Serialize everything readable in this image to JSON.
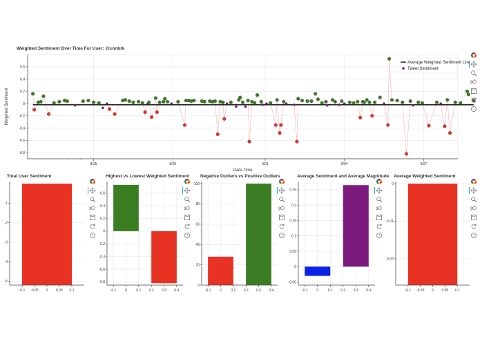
{
  "toolbar": {
    "icons": [
      "bokeh-logo-icon",
      "pan-icon",
      "box-zoom-icon",
      "wheel-zoom-icon",
      "save-icon",
      "reset-icon",
      "help-icon"
    ]
  },
  "colors": {
    "positive": "#3a7d22",
    "negative": "#e83224",
    "neutral": "#7b1b7e",
    "line": "#000000",
    "connector": "#f4a7a7",
    "bar_red": "#e83224",
    "bar_green": "#3a7d22",
    "bar_blue": "#0a23e8",
    "bar_purple": "#7b1b7e",
    "grid": "#e6e6e6"
  },
  "chart_data": [
    {
      "type": "scatter",
      "title": "Weighted Sentiment Over Time For User: @cnnbrk",
      "xlabel": "Date-Time",
      "ylabel": "Weighted Sentiment",
      "ylim": [
        -0.9,
        0.8
      ],
      "yticks": [
        0.6,
        0.4,
        0.2,
        0,
        -0.2,
        -0.4,
        -0.6,
        -0.8
      ],
      "x_tick_labels": [
        "8/25",
        "8/28",
        "9/01",
        "9/04",
        "9/07"
      ],
      "x_tick_positions": [
        2.5,
        5.5,
        9,
        12,
        15
      ],
      "xlim": [
        0,
        16.3
      ],
      "average_line_value": -0.02,
      "legend": {
        "placement": "top-right",
        "entries": [
          "Average Weighted Sentiment Line",
          "Tweet Sentiment"
        ]
      },
      "points": [
        [
          0.2,
          0.16
        ],
        [
          0.25,
          -0.1
        ],
        [
          0.4,
          0.02
        ],
        [
          0.5,
          0.03
        ],
        [
          0.6,
          0.12
        ],
        [
          0.8,
          -0.17
        ],
        [
          1.0,
          0.01
        ],
        [
          1.2,
          0.03
        ],
        [
          1.4,
          0.05
        ],
        [
          1.5,
          0.04
        ],
        [
          1.8,
          -0.03
        ],
        [
          2.1,
          0.04
        ],
        [
          2.3,
          0.05
        ],
        [
          2.5,
          0.02
        ],
        [
          2.7,
          0.01
        ],
        [
          2.85,
          -0.07
        ],
        [
          3.0,
          0.0
        ],
        [
          3.1,
          -0.09
        ],
        [
          3.3,
          -0.17
        ],
        [
          3.6,
          0.05
        ],
        [
          3.7,
          0.06
        ],
        [
          3.85,
          0.04
        ],
        [
          4.0,
          0.02
        ],
        [
          4.2,
          0.03
        ],
        [
          4.35,
          0.01
        ],
        [
          4.45,
          -0.14
        ],
        [
          4.55,
          0.0
        ],
        [
          4.6,
          0.02
        ],
        [
          4.7,
          -0.22
        ],
        [
          4.85,
          0.09
        ],
        [
          4.9,
          -0.14
        ],
        [
          5.0,
          0.02
        ],
        [
          5.15,
          0.03
        ],
        [
          5.2,
          0.08
        ],
        [
          5.3,
          0.03
        ],
        [
          5.45,
          0.0
        ],
        [
          5.7,
          0.03
        ],
        [
          5.95,
          -0.35
        ],
        [
          6.0,
          0.05
        ],
        [
          6.1,
          0.05
        ],
        [
          6.2,
          0.04
        ],
        [
          6.3,
          0.05
        ],
        [
          6.6,
          0.04
        ],
        [
          6.7,
          0.03
        ],
        [
          6.9,
          0.04
        ],
        [
          7.0,
          0.03
        ],
        [
          7.1,
          0.04
        ],
        [
          7.2,
          -0.5
        ],
        [
          7.3,
          0.03
        ],
        [
          7.4,
          0.02
        ],
        [
          7.45,
          -0.25
        ],
        [
          7.55,
          0.0
        ],
        [
          7.7,
          0.02
        ],
        [
          7.9,
          -0.05
        ],
        [
          8.0,
          0.06
        ],
        [
          8.05,
          0.1
        ],
        [
          8.15,
          0.02
        ],
        [
          8.25,
          -0.05
        ],
        [
          8.35,
          0.05
        ],
        [
          8.4,
          -0.62
        ],
        [
          8.5,
          0.03
        ],
        [
          8.6,
          0.01
        ],
        [
          8.7,
          0.14
        ],
        [
          8.85,
          0.03
        ],
        [
          8.9,
          -0.02
        ],
        [
          9.05,
          0.0
        ],
        [
          9.2,
          0.01
        ],
        [
          9.4,
          -0.35
        ],
        [
          9.45,
          0.06
        ],
        [
          9.55,
          -0.48
        ],
        [
          9.6,
          -0.35
        ],
        [
          9.7,
          0.03
        ],
        [
          9.8,
          0.0
        ],
        [
          10.1,
          -0.02
        ],
        [
          10.2,
          -0.62
        ],
        [
          10.25,
          0.08
        ],
        [
          10.4,
          0.05
        ],
        [
          10.6,
          0.04
        ],
        [
          10.75,
          0.04
        ],
        [
          10.9,
          0.16
        ],
        [
          11.0,
          0.07
        ],
        [
          11.15,
          0.01
        ],
        [
          11.3,
          0.03
        ],
        [
          11.35,
          -0.03
        ],
        [
          11.55,
          0.06
        ],
        [
          11.65,
          0.03
        ],
        [
          11.8,
          -0.02
        ],
        [
          11.9,
          0.04
        ],
        [
          12.0,
          0.0
        ],
        [
          12.2,
          0.02
        ],
        [
          12.35,
          0.01
        ],
        [
          12.5,
          0.03
        ],
        [
          12.6,
          -0.23
        ],
        [
          12.7,
          0.03
        ],
        [
          12.75,
          0.02
        ],
        [
          12.85,
          0.06
        ],
        [
          12.95,
          0.02
        ],
        [
          13.05,
          -0.2
        ],
        [
          13.15,
          0.02
        ],
        [
          13.35,
          0.1
        ],
        [
          13.5,
          0.0
        ],
        [
          13.65,
          -0.35
        ],
        [
          13.7,
          0.73
        ],
        [
          13.8,
          0.06
        ],
        [
          14.0,
          0.05
        ],
        [
          14.2,
          0.02
        ],
        [
          14.35,
          -0.82
        ],
        [
          14.5,
          0.04
        ],
        [
          14.6,
          -0.03
        ],
        [
          14.8,
          0.02
        ],
        [
          14.95,
          0.01
        ],
        [
          15.2,
          -0.36
        ],
        [
          15.5,
          0.02
        ],
        [
          15.65,
          0.0
        ],
        [
          15.8,
          -0.37
        ],
        [
          15.9,
          0.06
        ],
        [
          16.0,
          -0.48
        ],
        [
          16.2,
          0.02
        ],
        [
          16.4,
          0.01
        ],
        [
          16.65,
          0.2
        ],
        [
          16.7,
          0.15
        ],
        [
          16.9,
          0.05
        ]
      ]
    },
    {
      "type": "bar",
      "title": "Total User Sentiment",
      "x_tick_labels": [
        "-0.1",
        "-0.05",
        "0",
        "0.05",
        "0.1"
      ],
      "xlim": [
        -0.15,
        0.15
      ],
      "ylim": [
        -5.2,
        0
      ],
      "yticks": [
        -1,
        -2,
        -3,
        -4,
        -5
      ],
      "bars": [
        {
          "x0": -0.1,
          "x1": 0.1,
          "value": -5.2,
          "color": "#e83224"
        }
      ]
    },
    {
      "type": "bar",
      "title": "Highest vs Lowest Weighted Sentiment",
      "x_tick_labels": [
        "-0.1",
        "0",
        "0.1",
        "0.2",
        "0.3",
        "0.4"
      ],
      "xlim": [
        -0.15,
        0.45
      ],
      "ylim": [
        -0.85,
        0.75
      ],
      "yticks": [
        0.6,
        0.4,
        0.2,
        0,
        -0.2,
        -0.4,
        -0.6,
        -0.8
      ],
      "bars": [
        {
          "x0": -0.1,
          "x1": 0.1,
          "value": 0.73,
          "color": "#3a7d22"
        },
        {
          "x0": 0.2,
          "x1": 0.4,
          "value": -0.82,
          "color": "#e83224"
        }
      ]
    },
    {
      "type": "bar",
      "title": "Negative Outliers vs Positive Outliers",
      "x_tick_labels": [
        "-0.1",
        "0",
        "0.1",
        "0.2",
        "0.3",
        "0.4"
      ],
      "xlim": [
        -0.15,
        0.45
      ],
      "ylim": [
        0,
        100
      ],
      "yticks": [
        100,
        80,
        60,
        40,
        20,
        0
      ],
      "bars": [
        {
          "x0": -0.1,
          "x1": 0.1,
          "value": 28,
          "color": "#e83224"
        },
        {
          "x0": 0.2,
          "x1": 0.4,
          "value": 100,
          "color": "#3a7d22"
        }
      ]
    },
    {
      "type": "bar",
      "title": "Average Sentiment and Average Magnitude",
      "x_tick_labels": [
        "-0.1",
        "0",
        "0.1",
        "0.2",
        "0.3",
        "0.4"
      ],
      "xlim": [
        -0.15,
        0.45
      ],
      "ylim": [
        -0.06,
        0.27
      ],
      "yticks": [
        0.25,
        0.2,
        0.15,
        0.1,
        0.05,
        0,
        -0.05
      ],
      "bars": [
        {
          "x0": -0.1,
          "x1": 0.1,
          "value": -0.03,
          "color": "#0a23e8"
        },
        {
          "x0": 0.2,
          "x1": 0.4,
          "value": 0.265,
          "color": "#7b1b7e"
        }
      ]
    },
    {
      "type": "bar",
      "title": "Average Weighted Sentiment",
      "x_tick_labels": [
        "-0.1",
        "-0.05",
        "0",
        "0.05",
        "0.1"
      ],
      "xlim": [
        -0.15,
        0.15
      ],
      "ylim": [
        -0.027,
        0
      ],
      "yticks": [
        0,
        -0.01,
        -0.02
      ],
      "bars": [
        {
          "x0": -0.1,
          "x1": 0.1,
          "value": -0.027,
          "color": "#e83224"
        }
      ]
    }
  ]
}
